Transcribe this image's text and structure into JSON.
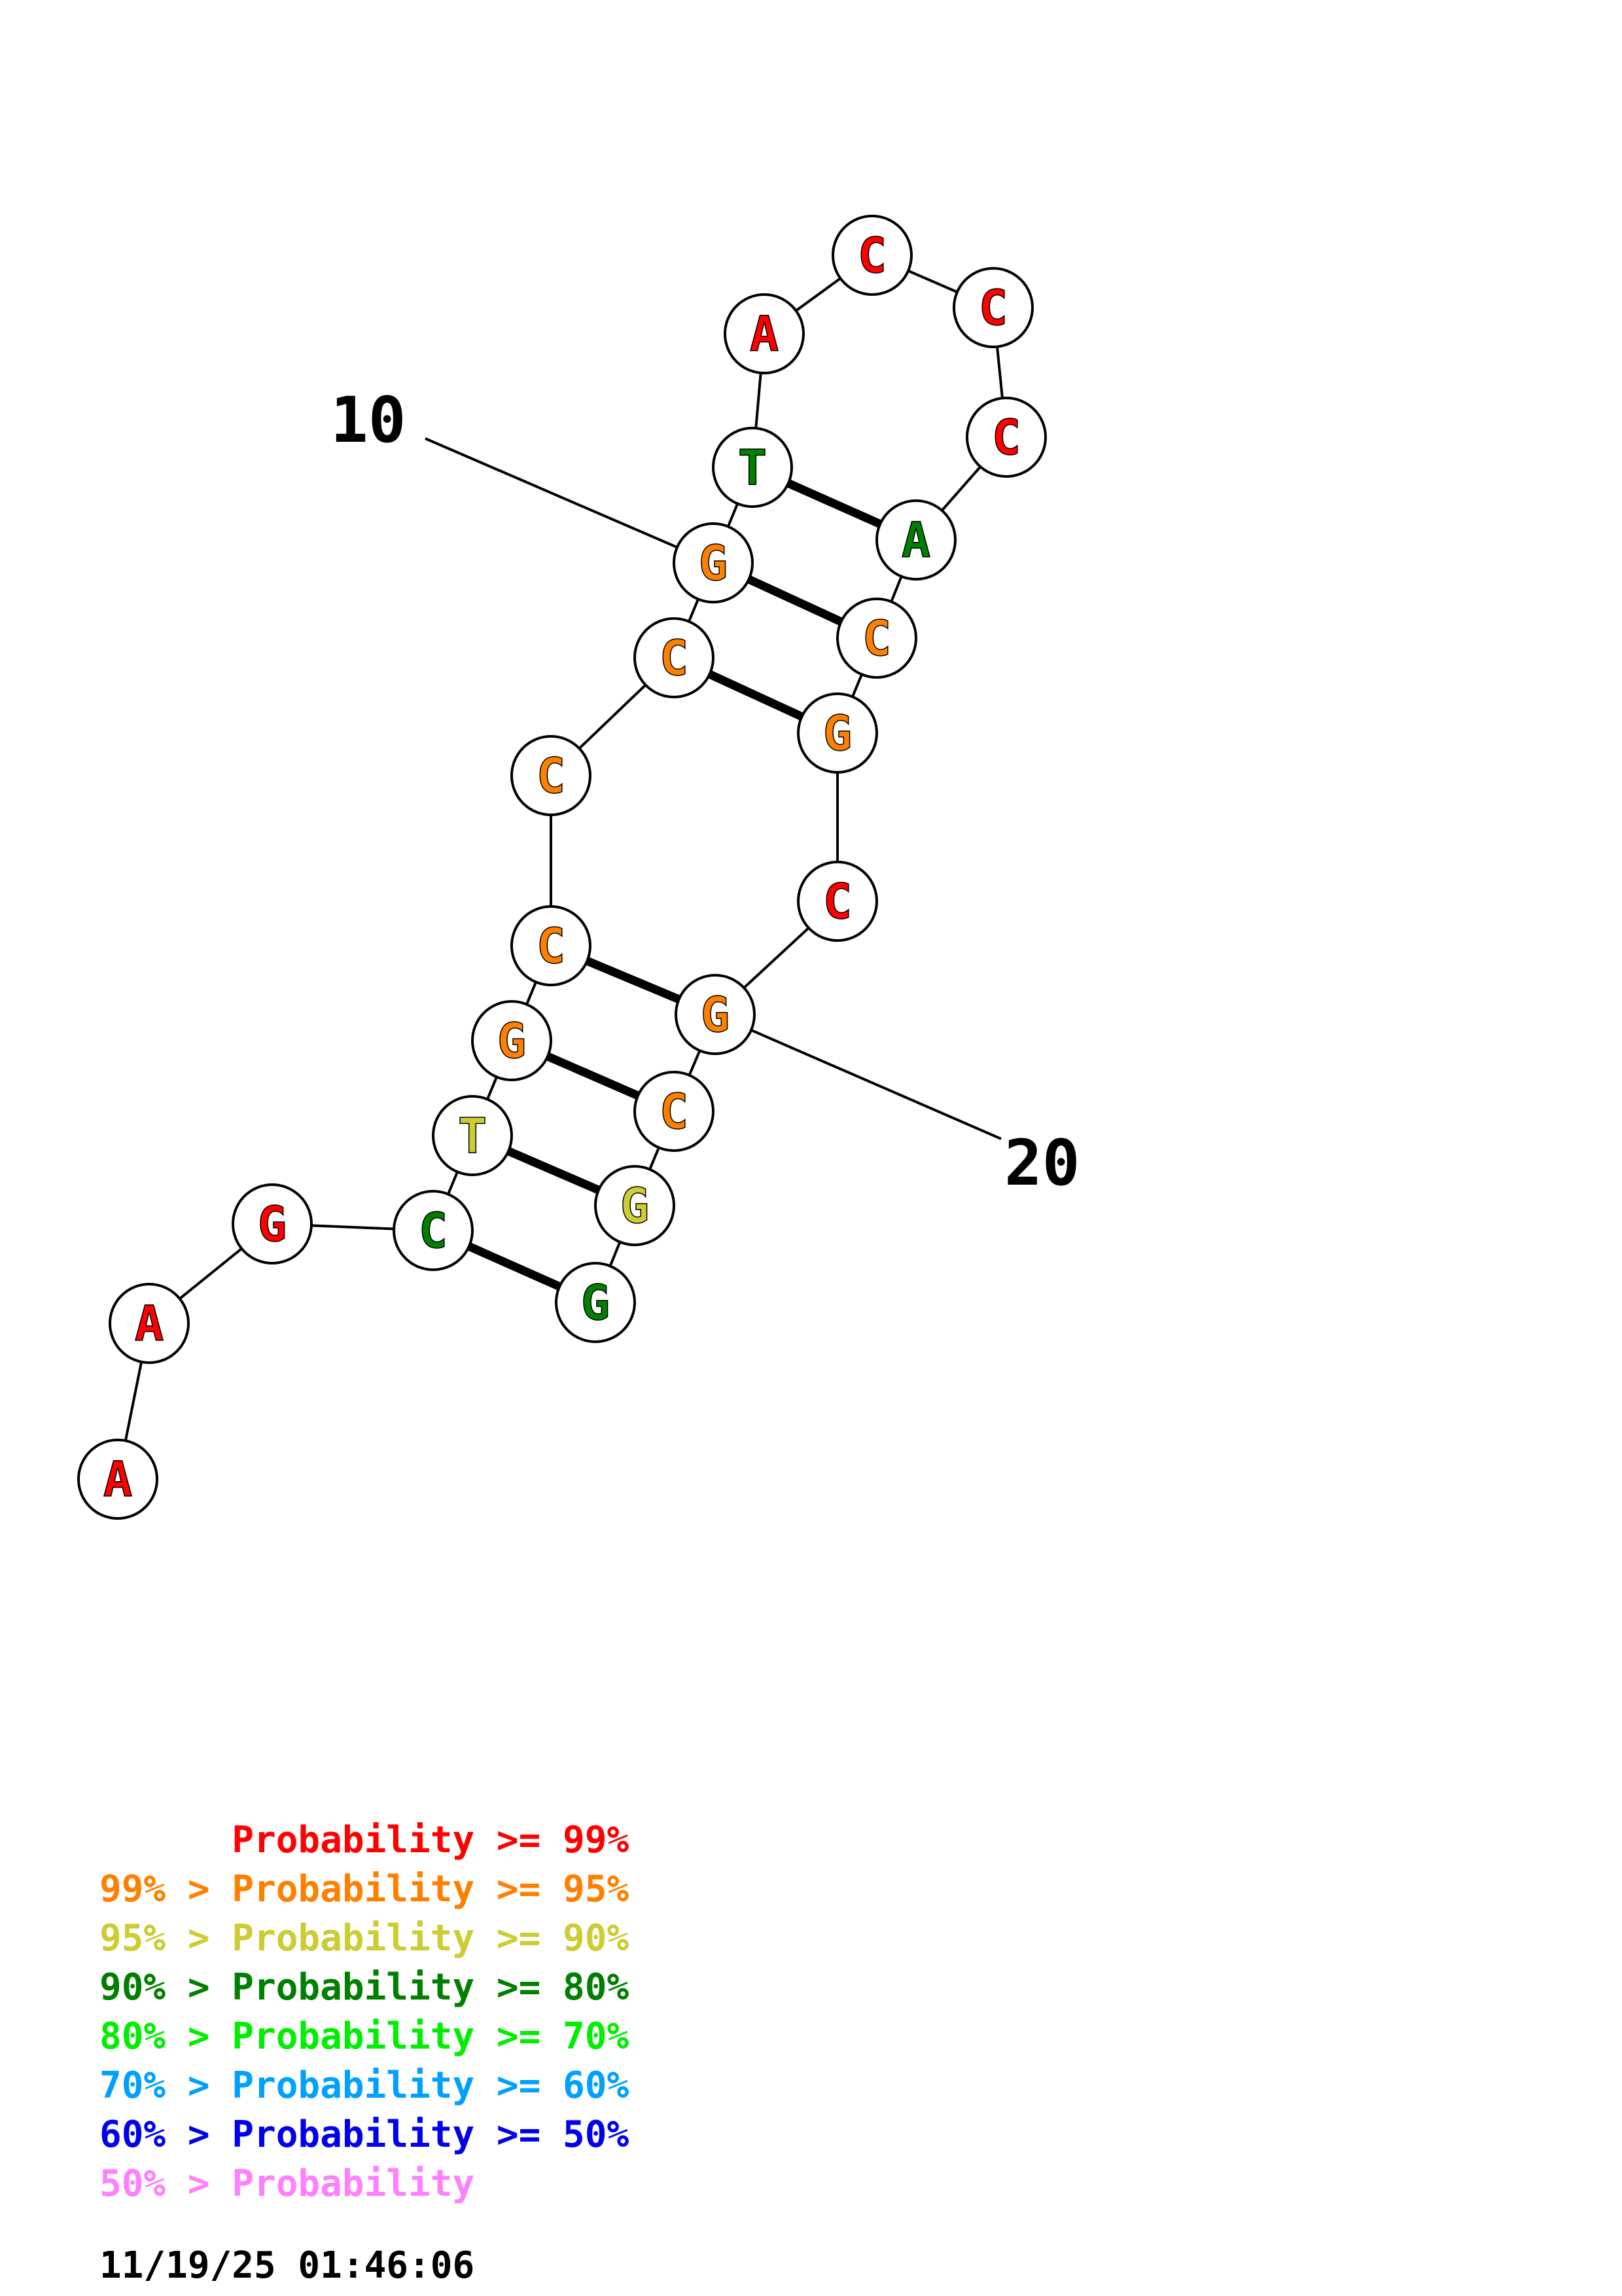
{
  "colors": {
    "red": "#ff0000",
    "orange": "#ff8000",
    "yellow": "#cccc33",
    "darkgreen": "#008000",
    "green": "#00ee00",
    "cyan": "#00a0ff",
    "blue": "#0000ee",
    "pink": "#ff80ff"
  },
  "sequence": [
    {
      "base": "A",
      "color": "red"
    },
    {
      "base": "A",
      "color": "red"
    },
    {
      "base": "G",
      "color": "red"
    },
    {
      "base": "C",
      "color": "darkgreen"
    },
    {
      "base": "T",
      "color": "yellow"
    },
    {
      "base": "G",
      "color": "orange"
    },
    {
      "base": "C",
      "color": "orange"
    },
    {
      "base": "C",
      "color": "orange"
    },
    {
      "base": "C",
      "color": "orange"
    },
    {
      "base": "G",
      "color": "orange"
    },
    {
      "base": "T",
      "color": "darkgreen"
    },
    {
      "base": "A",
      "color": "red"
    },
    {
      "base": "C",
      "color": "red"
    },
    {
      "base": "C",
      "color": "red"
    },
    {
      "base": "C",
      "color": "red"
    },
    {
      "base": "A",
      "color": "darkgreen"
    },
    {
      "base": "C",
      "color": "orange"
    },
    {
      "base": "G",
      "color": "orange"
    },
    {
      "base": "C",
      "color": "red"
    },
    {
      "base": "G",
      "color": "orange"
    },
    {
      "base": "C",
      "color": "orange"
    },
    {
      "base": "G",
      "color": "yellow"
    },
    {
      "base": "G",
      "color": "darkgreen"
    }
  ],
  "pairs": [
    [
      4,
      23
    ],
    [
      5,
      22
    ],
    [
      6,
      21
    ],
    [
      7,
      20
    ],
    [
      9,
      18
    ],
    [
      10,
      17
    ],
    [
      11,
      16
    ]
  ],
  "position_labels": [
    {
      "index": 10,
      "text": "10"
    },
    {
      "index": 20,
      "text": "20"
    }
  ],
  "legend": [
    {
      "prefix": "",
      "label": "Probability",
      "suffix": ">= 99%",
      "color": "red"
    },
    {
      "prefix": "99% >",
      "label": "Probability",
      "suffix": ">= 95%",
      "color": "orange"
    },
    {
      "prefix": "95% >",
      "label": "Probability",
      "suffix": ">= 90%",
      "color": "yellow"
    },
    {
      "prefix": "90% >",
      "label": "Probability",
      "suffix": ">= 80%",
      "color": "darkgreen"
    },
    {
      "prefix": "80% >",
      "label": "Probability",
      "suffix": ">= 70%",
      "color": "green"
    },
    {
      "prefix": "70% >",
      "label": "Probability",
      "suffix": ">= 60%",
      "color": "cyan"
    },
    {
      "prefix": "60% >",
      "label": "Probability",
      "suffix": ">= 50%",
      "color": "blue"
    },
    {
      "prefix": "50% >",
      "label": "Probability",
      "suffix": "",
      "color": "pink"
    }
  ],
  "timestamp": "11/19/25 01:46:06"
}
